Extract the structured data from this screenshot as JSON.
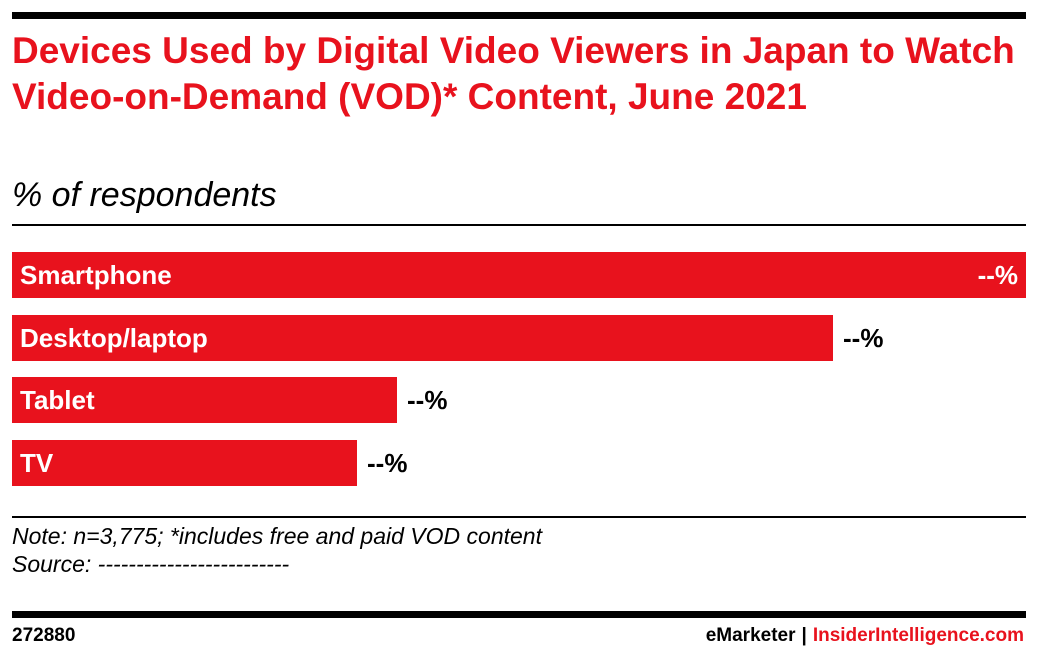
{
  "header": {
    "title": "Devices Used by Digital Video Viewers in Japan to Watch Video-on-Demand (VOD)* Content, June 2021",
    "subtitle": "% of respondents"
  },
  "chart_data": {
    "type": "bar",
    "orientation": "horizontal",
    "title": "Devices Used by Digital Video Viewers in Japan to Watch Video-on-Demand (VOD)* Content, June 2021",
    "subtitle": "% of respondents",
    "categories": [
      "Smartphone",
      "Desktop/laptop",
      "Tablet",
      "TV"
    ],
    "values": [
      100,
      81,
      38,
      34
    ],
    "value_labels": [
      "--%",
      "--%",
      "--%",
      "--%"
    ],
    "xlim": [
      0,
      100
    ],
    "grid": false,
    "legend": "none",
    "bar_color": "#e8121d"
  },
  "notes": {
    "note": "Note: n=3,775; *includes free and paid VOD content",
    "source": "Source: -------------------------"
  },
  "footer": {
    "chart_id": "272880",
    "brand_emarketer": "eMarketer",
    "separator": "|",
    "brand_insider": "InsiderIntelligence.com"
  }
}
